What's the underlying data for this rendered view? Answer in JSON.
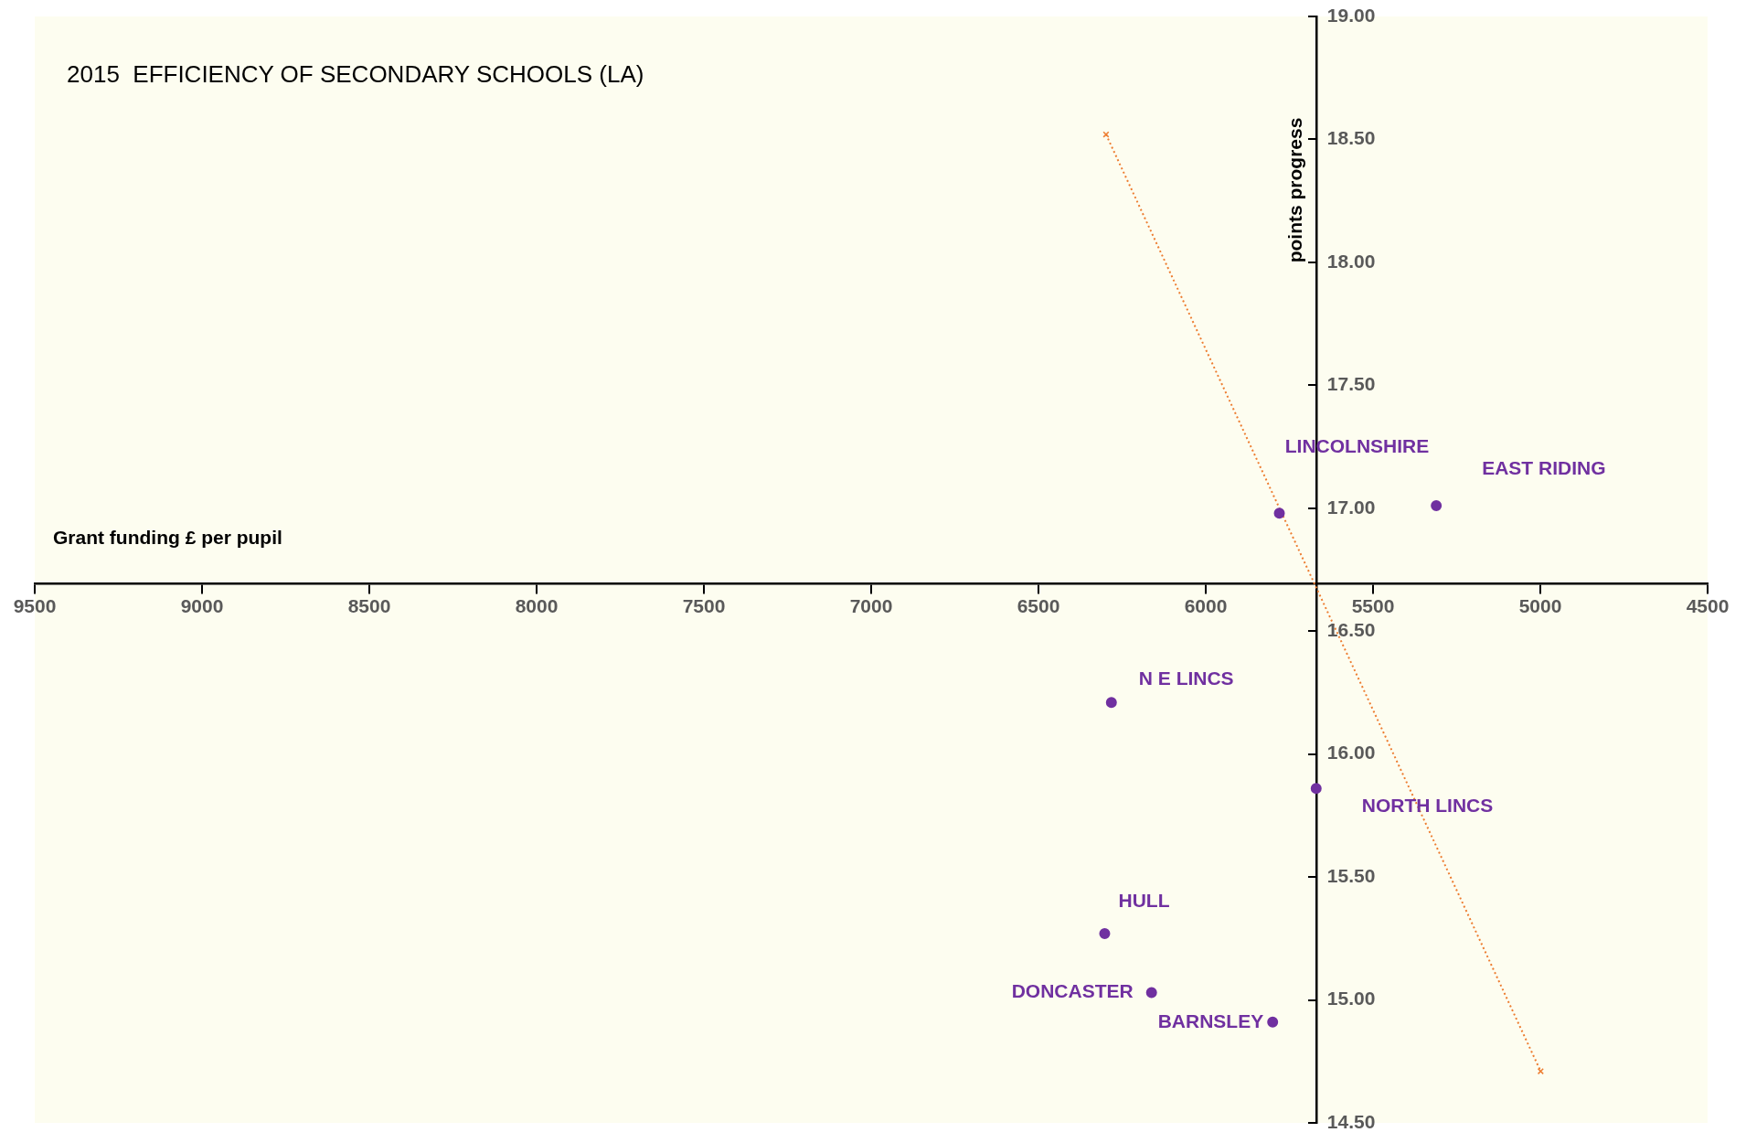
{
  "chart_data": {
    "type": "scatter",
    "title": "2015  EFFICIENCY OF SECONDARY SCHOOLS (LA)",
    "xlabel": "Grant funding £ per pupil",
    "ylabel": "points progress",
    "xlim": [
      9500,
      4500
    ],
    "xticks": [
      9500,
      9000,
      8500,
      8000,
      7500,
      7000,
      6500,
      6000,
      5500,
      5000,
      4500
    ],
    "ylim": [
      14.5,
      19
    ],
    "yticks": [
      {
        "value": 14.5,
        "label": "14.50"
      },
      {
        "value": 15,
        "label": "15.00"
      },
      {
        "value": 15.5,
        "label": "15.50"
      },
      {
        "value": 16,
        "label": "16.00"
      },
      {
        "value": 16.5,
        "label": "16.50"
      },
      {
        "value": 17,
        "label": "17.00"
      },
      {
        "value": 17.5,
        "label": "17.50"
      },
      {
        "value": 18,
        "label": "18.00"
      },
      {
        "value": 18.5,
        "label": "18.50"
      },
      {
        "value": 19,
        "label": "19.00"
      }
    ],
    "grid": false,
    "legend": false,
    "series": [
      {
        "color": "#7030a0",
        "marker": "circle",
        "x": [
          5780,
          5311,
          6282,
          5670,
          6302,
          6162,
          5800
        ],
        "values": [
          16.98,
          17.01,
          16.21,
          15.86,
          15.27,
          15.03,
          14.91
        ]
      },
      {
        "type": "line",
        "color": "#ed7d31",
        "line_style": "dotted",
        "marker": "cross",
        "x": [
          6298,
          4999
        ],
        "values": [
          18.52,
          14.71
        ]
      }
    ],
    "annotations": [
      {
        "text": "LINCOLNSHIRE",
        "x": 5780,
        "y": 16.98
      },
      {
        "text": "EAST RIDING",
        "x": 5311,
        "y": 17.01
      },
      {
        "text": "N E LINCS",
        "x": 6282,
        "y": 16.21
      },
      {
        "text": "NORTH LINCS",
        "x": 5670,
        "y": 15.86
      },
      {
        "text": "HULL",
        "x": 6302,
        "y": 15.27
      },
      {
        "text": "DONCASTER",
        "x": 6162,
        "y": 15.03
      },
      {
        "text": "BARNSLEY",
        "x": 5800,
        "y": 14.91
      }
    ]
  }
}
